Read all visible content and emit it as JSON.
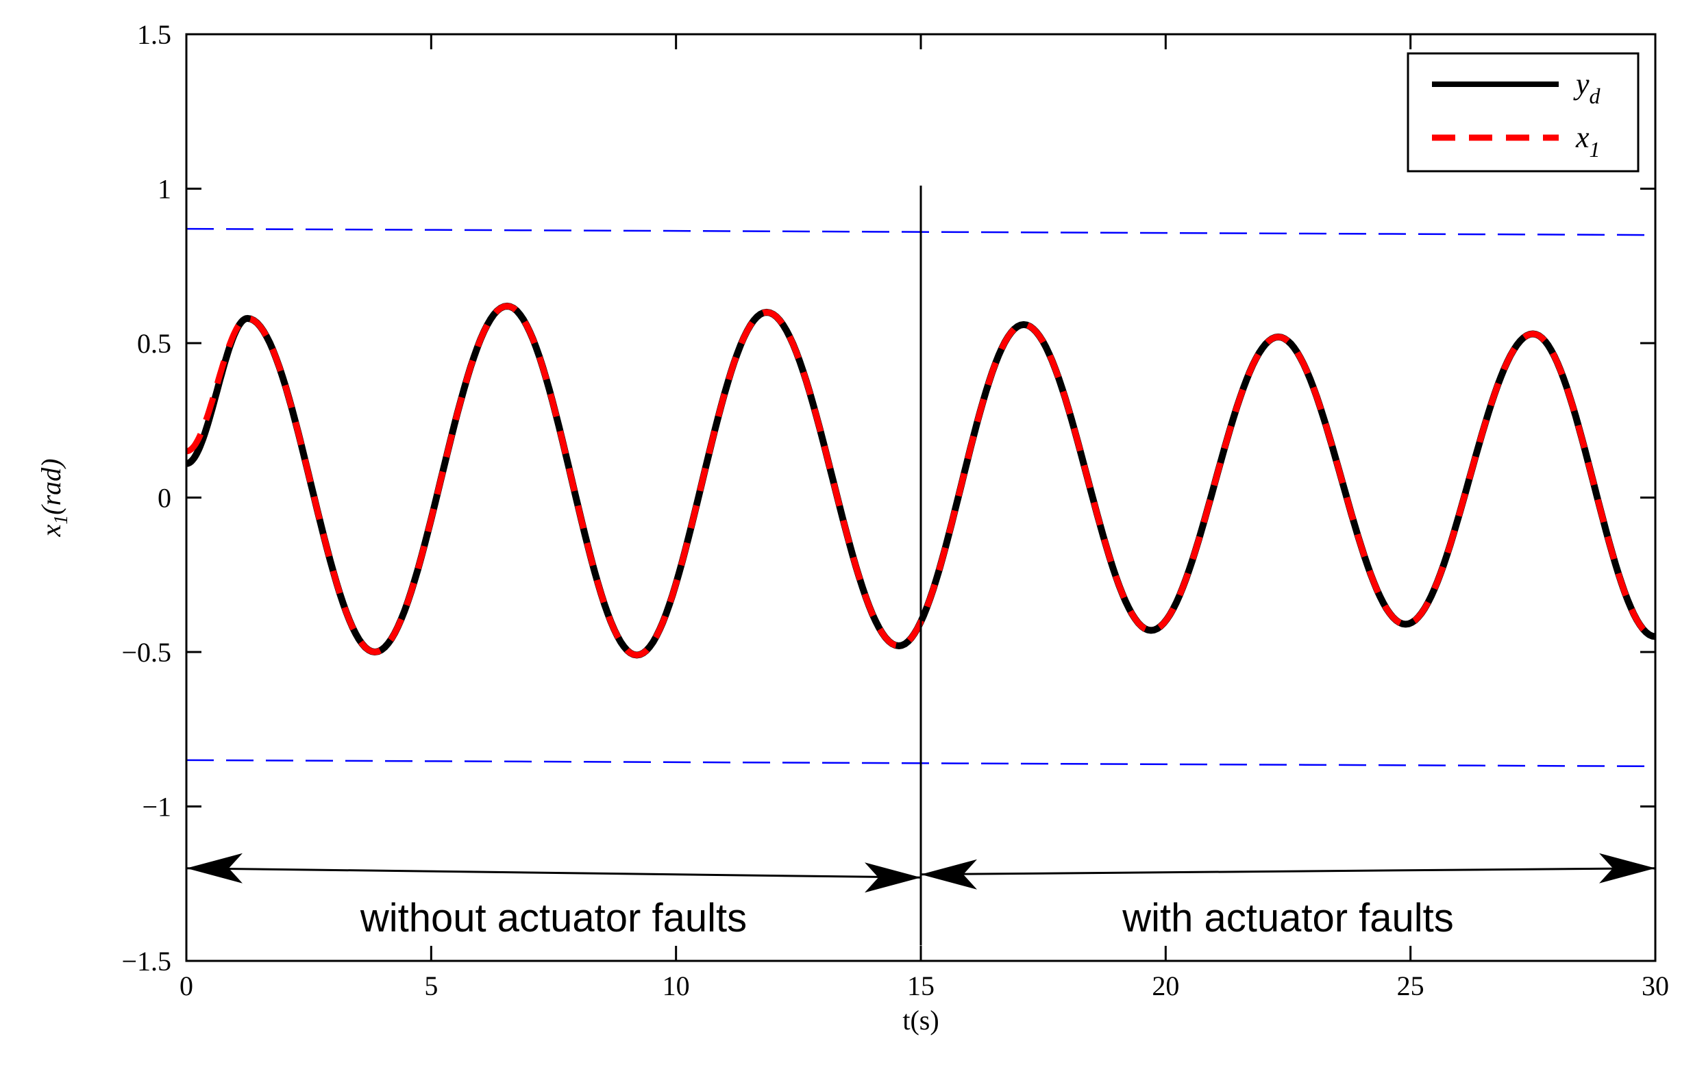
{
  "chart_data": {
    "type": "line",
    "title": "",
    "xlabel": "t(s)",
    "ylabel": {
      "base": "x",
      "sub": "1",
      "rest": "(rad)"
    },
    "xlim": [
      0,
      30
    ],
    "ylim": [
      -1.5,
      1.5
    ],
    "xticks": [
      0,
      5,
      10,
      15,
      20,
      25,
      30
    ],
    "yticks": [
      -1.5,
      -1,
      -0.5,
      0,
      0.5,
      1,
      1.5
    ],
    "xtick_labels": [
      "0",
      "5",
      "10",
      "15",
      "20",
      "25",
      "30"
    ],
    "ytick_labels": [
      "−1.5",
      "−1",
      "−0.5",
      "0",
      "0.5",
      "1",
      "1.5"
    ],
    "grid": false,
    "legend_position": "top-right",
    "legend": [
      {
        "base": "y",
        "sub": "d",
        "color": "#000000",
        "style": "solid"
      },
      {
        "base": "x",
        "sub": "1",
        "color": "#ff0000",
        "style": "dashed"
      }
    ],
    "series": [
      {
        "color": "#000000",
        "style": "solid",
        "x": [
          0,
          1.25,
          3.85,
          6.55,
          9.2,
          11.85,
          14.55,
          17.1,
          19.7,
          22.3,
          24.9,
          27.5,
          30
        ],
        "y": [
          0.11,
          0.58,
          -0.5,
          0.62,
          -0.51,
          0.6,
          -0.48,
          0.56,
          -0.43,
          0.52,
          -0.41,
          0.53,
          -0.45
        ]
      },
      {
        "color": "#ff0000",
        "style": "dashed",
        "x": [
          0,
          1.25,
          3.85,
          6.55,
          9.2,
          11.85,
          14.55,
          17.1,
          19.7,
          22.3,
          24.9,
          27.5,
          30
        ],
        "y": [
          0.15,
          0.58,
          -0.5,
          0.62,
          -0.51,
          0.6,
          -0.48,
          0.56,
          -0.43,
          0.52,
          -0.41,
          0.53,
          -0.45
        ]
      },
      {
        "color": "#0000ff",
        "style": "dashed",
        "x": [
          0,
          30
        ],
        "y": [
          0.87,
          0.85
        ]
      },
      {
        "color": "#0000ff",
        "style": "dashed",
        "x": [
          0,
          30
        ],
        "y": [
          -0.85,
          -0.87
        ]
      }
    ],
    "fault_time": 15,
    "annotations": {
      "left_label": "without actuator faults",
      "right_label": "with actuator faults",
      "label_y": -1.36,
      "arrow_left": {
        "x": [
          0,
          15
        ],
        "y": [
          -1.2,
          -1.23
        ]
      },
      "arrow_right": {
        "x": [
          15,
          30
        ],
        "y": [
          -1.22,
          -1.2
        ]
      }
    },
    "vline": {
      "x": 15,
      "y": [
        -1.45,
        1.01
      ]
    }
  }
}
